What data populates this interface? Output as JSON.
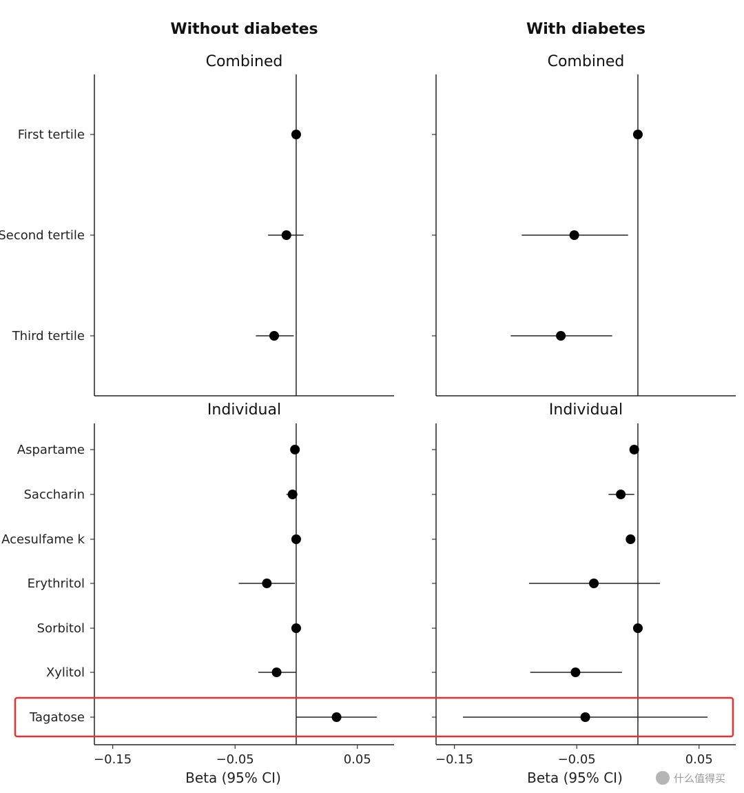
{
  "columns": [
    {
      "title": "Without diabetes"
    },
    {
      "title": "With diabetes"
    }
  ],
  "facets": [
    {
      "title": "Combined"
    },
    {
      "title": "Individual"
    }
  ],
  "xaxis": {
    "label": "Beta (95% CI)",
    "ticks": [
      -0.15,
      -0.05,
      0.05
    ],
    "tick_labels": [
      "−0.15",
      "−0.05",
      "0.05"
    ],
    "range": [
      -0.165,
      0.08
    ],
    "reference": 0
  },
  "highlight": {
    "label": "Tagatose",
    "color": "#e8312f"
  },
  "watermark": "什么值得买",
  "chart_data": [
    {
      "type": "forest",
      "column": "Without diabetes",
      "facet": "Combined",
      "xlabel": "",
      "categories": [
        "First tertile",
        "Second tertile",
        "Third tertile"
      ],
      "estimates": [
        0.0,
        -0.008,
        -0.018
      ],
      "ci_lower": [
        0.0,
        -0.023,
        -0.033
      ],
      "ci_upper": [
        0.0,
        0.006,
        -0.002
      ],
      "reference_line": 0
    },
    {
      "type": "forest",
      "column": "With diabetes",
      "facet": "Combined",
      "xlabel": "",
      "categories": [
        "First tertile",
        "Second tertile",
        "Third tertile"
      ],
      "estimates": [
        0.0,
        -0.052,
        -0.063
      ],
      "ci_lower": [
        0.0,
        -0.095,
        -0.104
      ],
      "ci_upper": [
        0.0,
        -0.008,
        -0.021
      ],
      "reference_line": 0
    },
    {
      "type": "forest",
      "column": "Without diabetes",
      "facet": "Individual",
      "xlabel": "Beta (95% CI)",
      "categories": [
        "Aspartame",
        "Saccharin",
        "Acesulfame k",
        "Erythritol",
        "Sorbitol",
        "Xylitol",
        "Tagatose"
      ],
      "estimates": [
        -0.001,
        -0.003,
        0.0,
        -0.024,
        0.0,
        -0.016,
        0.033
      ],
      "ci_lower": [
        -0.001,
        -0.008,
        0.0,
        -0.047,
        0.0,
        -0.031,
        0.0
      ],
      "ci_upper": [
        -0.001,
        0.001,
        0.0,
        -0.001,
        0.0,
        0.0,
        0.066
      ],
      "xlim": [
        -0.165,
        0.08
      ],
      "reference_line": 0
    },
    {
      "type": "forest",
      "column": "With diabetes",
      "facet": "Individual",
      "xlabel": "Beta (95% CI)",
      "categories": [
        "Aspartame",
        "Saccharin",
        "Acesulfame k",
        "Erythritol",
        "Sorbitol",
        "Xylitol",
        "Tagatose"
      ],
      "estimates": [
        -0.003,
        -0.014,
        -0.006,
        -0.036,
        0.0,
        -0.051,
        -0.043
      ],
      "ci_lower": [
        -0.003,
        -0.024,
        -0.006,
        -0.089,
        0.0,
        -0.088,
        -0.143
      ],
      "ci_upper": [
        -0.003,
        -0.003,
        -0.006,
        0.018,
        0.0,
        -0.013,
        0.057
      ],
      "xlim": [
        -0.165,
        0.08
      ],
      "reference_line": 0
    }
  ]
}
